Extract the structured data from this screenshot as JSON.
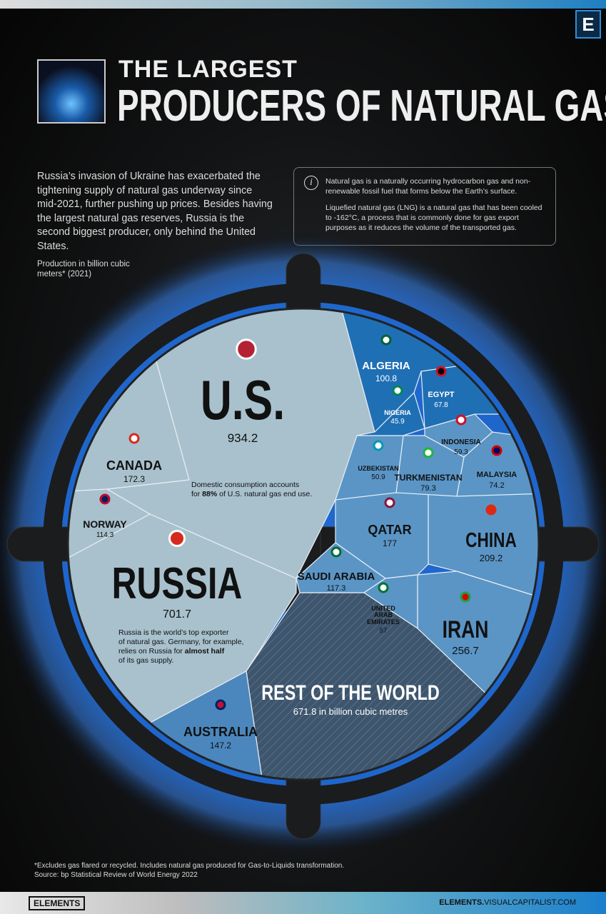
{
  "header": {
    "brand_badge": "E",
    "title_line1": "THE LARGEST",
    "title_line2": "PRODUCERS OF NATURAL GAS"
  },
  "intro": "Russia’s invasion of Ukraine has exacerbated the tightening supply of natural gas underway since mid-2021, further pushing up prices. Besides having the largest natural gas reserves, Russia is the second biggest producer, only behind the United States.",
  "info": {
    "icon": "info-icon",
    "p1": "Natural gas is a naturally occurring hydrocarbon gas and non-renewable fossil fuel that forms below the Earth’s surface.",
    "p2": "Liquefied natural gas (LNG) is a natural gas that has been cooled to -162°C, a process that is commonly done for gas export purposes as it reduces the volume of the transported gas."
  },
  "chart_data": {
    "type": "voronoi-treemap",
    "title": "THE LARGEST PRODUCERS OF NATURAL GAS",
    "unit_label": "Production in billion cubic meters* (2021)",
    "colors": {
      "light": "#a8c1cd",
      "mid": "#5a95c6",
      "dark": "#1f6fb5",
      "rest": "#3d556d"
    },
    "items": [
      {
        "name": "U.S.",
        "value": 934.2
      },
      {
        "name": "RUSSIA",
        "value": 701.7
      },
      {
        "name": "REST OF THE WORLD",
        "value": 671.8,
        "value_label": "671.8 in billion cubic metres"
      },
      {
        "name": "IRAN",
        "value": 256.7
      },
      {
        "name": "CHINA",
        "value": 209.2
      },
      {
        "name": "QATAR",
        "value": 177
      },
      {
        "name": "CANADA",
        "value": 172.3
      },
      {
        "name": "AUSTRALIA",
        "value": 147.2
      },
      {
        "name": "SAUDI ARABIA",
        "value": 117.3
      },
      {
        "name": "NORWAY",
        "value": 114.3
      },
      {
        "name": "ALGERIA",
        "value": 100.8
      },
      {
        "name": "TURKMENISTAN",
        "value": 79.3
      },
      {
        "name": "MALAYSIA",
        "value": 74.2
      },
      {
        "name": "EGYPT",
        "value": 67.8
      },
      {
        "name": "INDONESIA",
        "value": 59.3
      },
      {
        "name": "UNITED ARAB EMIRATES",
        "value": 57
      },
      {
        "name": "UZBEKISTAN",
        "value": 50.9
      },
      {
        "name": "NIGERIA",
        "value": 45.9
      }
    ],
    "annotations": {
      "us": [
        "Domestic consumption accounts",
        "for ",
        "88%",
        " of U.S. natural gas end use."
      ],
      "russia": [
        "Russia is the world’s top exporter",
        "of natural gas. Germany, for example,",
        "relies on Russia for ",
        "almost half",
        "of its gas supply."
      ]
    }
  },
  "footer": {
    "note": "*Excludes gas flared or recycled. Includes natural gas produced for Gas-to-Liquids transformation.",
    "source": "Source: bp Statistical Review of World Energy 2022",
    "brand": "ELEMENTS",
    "url_bold": "ELEMENTS.",
    "url_rest": "VISUALCAPITALIST.COM"
  }
}
